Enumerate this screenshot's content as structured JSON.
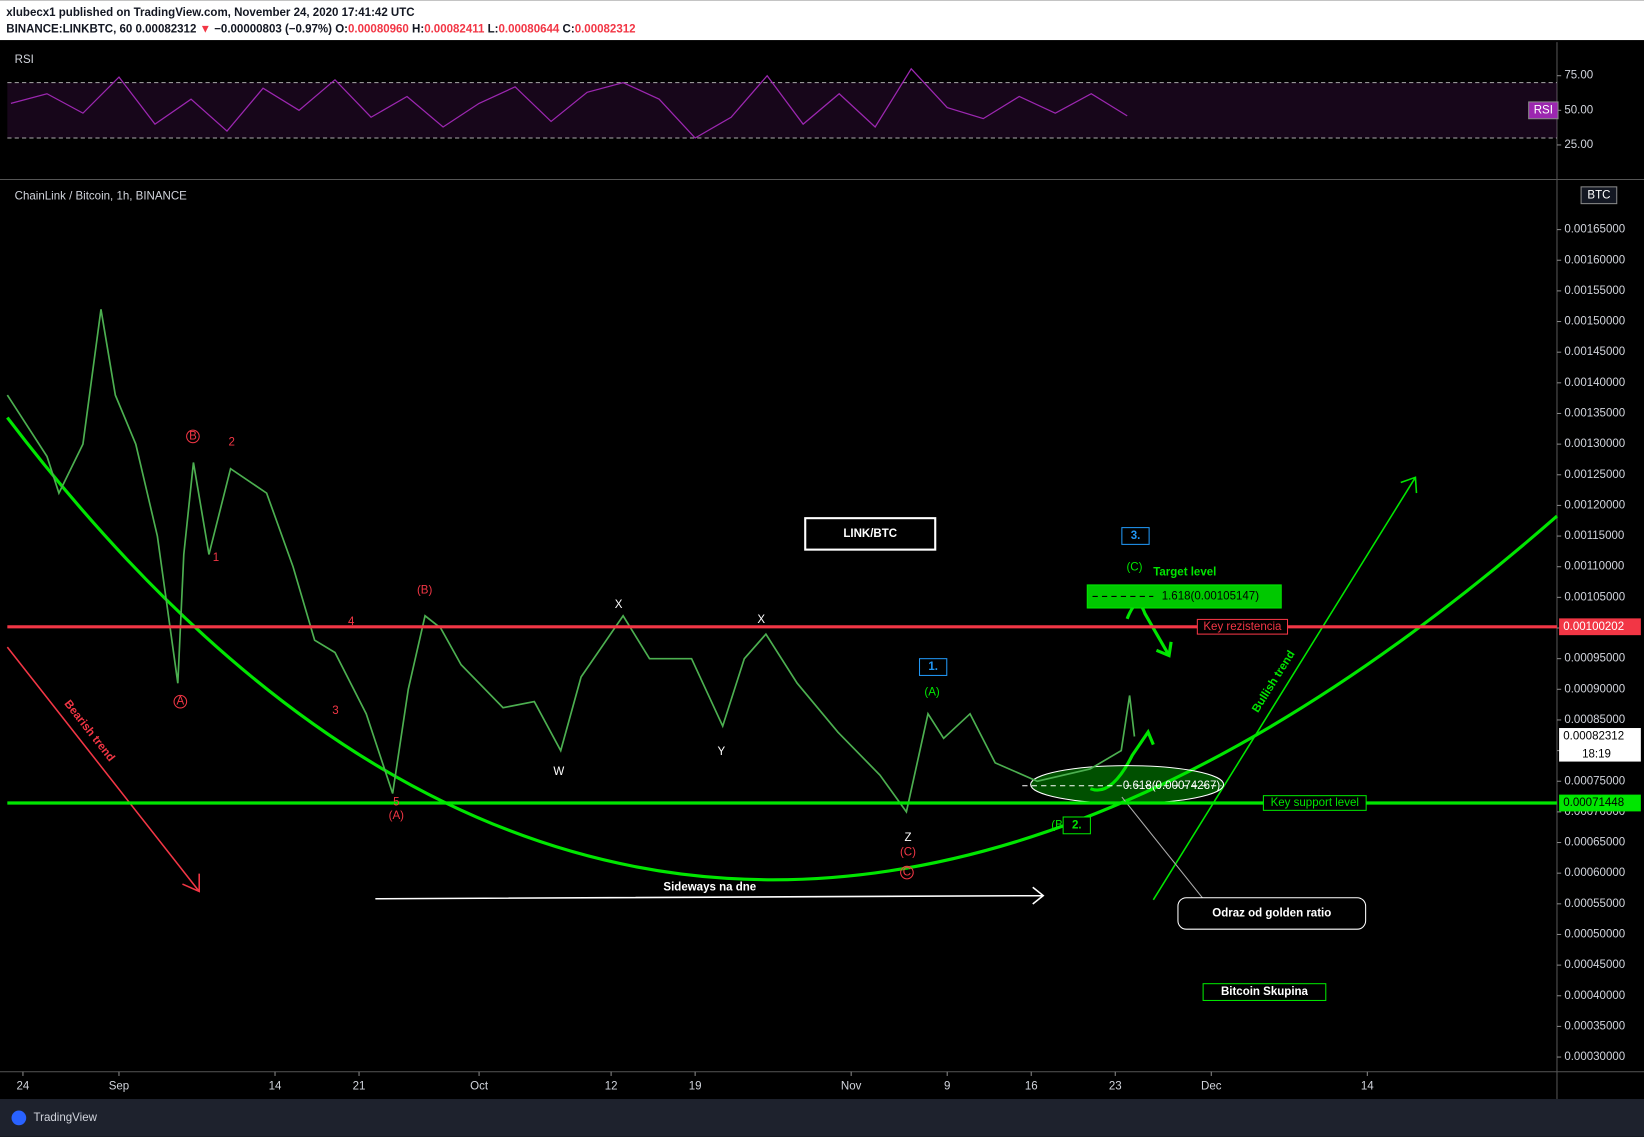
{
  "header": {
    "line1": "xlubecx1 published on TradingView.com, November 24, 2020 17:41:42 UTC",
    "line2": [
      {
        "text": "BINANCE:LINKBTC, 60 ",
        "color": "#131722"
      },
      {
        "text": "0.00082312 ",
        "color": "#131722"
      },
      {
        "text": "▼ ",
        "color": "#f23645"
      },
      {
        "text": "−0.00000803 (−0.97%) ",
        "color": "#131722"
      },
      {
        "text": "O:",
        "color": "#131722"
      },
      {
        "text": "0.00080960 ",
        "color": "#f23645"
      },
      {
        "text": "H:",
        "color": "#131722"
      },
      {
        "text": "0.00082411 ",
        "color": "#f23645"
      },
      {
        "text": "L:",
        "color": "#131722"
      },
      {
        "text": "0.00080644 ",
        "color": "#f23645"
      },
      {
        "text": "C:",
        "color": "#131722"
      },
      {
        "text": "0.00082312",
        "color": "#f23645"
      }
    ]
  },
  "chart_data": [
    {
      "type": "line",
      "title": "RSI",
      "badge": "RSI",
      "color": "#9c27b0",
      "x": [
        -1,
        2,
        5,
        8,
        11,
        14,
        17,
        20,
        23,
        26,
        29,
        32,
        35,
        38,
        41,
        44,
        47,
        50,
        53,
        56,
        59,
        62,
        65,
        68,
        71,
        74,
        77,
        80,
        83,
        86,
        89,
        92
      ],
      "values": [
        55,
        62,
        48,
        74,
        40,
        58,
        35,
        66,
        50,
        72,
        45,
        60,
        38,
        55,
        67,
        42,
        63,
        70,
        58,
        30,
        45,
        75,
        40,
        62,
        38,
        80,
        52,
        44,
        60,
        48,
        62,
        46
      ],
      "bands": [
        30,
        70
      ],
      "xlim": [
        -1.3,
        127.8
      ],
      "ylim": [
        0.8,
        97.7
      ],
      "yticks": [
        {
          "value": 25,
          "label": "25.00"
        },
        {
          "value": 50,
          "label": "50.00"
        },
        {
          "value": 75,
          "label": "75.00"
        }
      ]
    },
    {
      "type": "line",
      "title": "ChainLink / Bitcoin, 1h, BINANCE",
      "badge": "BTC",
      "color": "#4caf50",
      "x": [
        -1.3,
        2,
        3,
        5,
        6.5,
        7.7,
        9.4,
        11.2,
        12.9,
        13.4,
        14.2,
        15.5,
        17.3,
        20.3,
        22.5,
        24.3,
        26,
        28.6,
        30.8,
        32.1,
        33.5,
        34.8,
        36.5,
        40,
        42.6,
        44.8,
        46.5,
        50,
        52.2,
        55.7,
        58.3,
        60.1,
        61.9,
        64.5,
        67.9,
        71.4,
        73.6,
        75.4,
        76.7,
        78.9,
        81,
        84.5,
        88.9,
        91.5,
        92.2,
        92.6
      ],
      "values": [
        0.00138,
        0.00128,
        0.00122,
        0.0013,
        0.00152,
        0.00138,
        0.0013,
        0.00115,
        0.00091,
        0.00112,
        0.00127,
        0.00112,
        0.00126,
        0.00122,
        0.0011,
        0.00098,
        0.00096,
        0.00086,
        0.00073,
        0.0009,
        0.00102,
        0.001,
        0.00094,
        0.00087,
        0.00088,
        0.0008,
        0.00092,
        0.00102,
        0.00095,
        0.00095,
        0.00084,
        0.00095,
        0.00099,
        0.00091,
        0.00083,
        0.00076,
        0.0007,
        0.00086,
        0.00082,
        0.00086,
        0.00078,
        0.00075,
        0.00077,
        0.0008,
        0.00089,
        0.00082312
      ],
      "last": {
        "value": 0.00082312,
        "countdown": "18:19"
      },
      "xlim": [
        -1.3,
        127.8
      ],
      "ylim": [
        0.000276,
        0.00173
      ],
      "xticks": [
        {
          "value": 0,
          "label": "24"
        },
        {
          "value": 8,
          "label": "Sep"
        },
        {
          "value": 21,
          "label": "14"
        },
        {
          "value": 28,
          "label": "21"
        },
        {
          "value": 38,
          "label": "Oct"
        },
        {
          "value": 49,
          "label": "12"
        },
        {
          "value": 56,
          "label": "19"
        },
        {
          "value": 69,
          "label": "Nov"
        },
        {
          "value": 77,
          "label": "9"
        },
        {
          "value": 84,
          "label": "16"
        },
        {
          "value": 91,
          "label": "23"
        },
        {
          "value": 99,
          "label": "Dec"
        },
        {
          "value": 112,
          "label": "14"
        }
      ],
      "yticks": [
        {
          "value": 0.0003,
          "label": "0.00030000"
        },
        {
          "value": 0.00035,
          "label": "0.00035000"
        },
        {
          "value": 0.0004,
          "label": "0.00040000"
        },
        {
          "value": 0.00045,
          "label": "0.00045000"
        },
        {
          "value": 0.0005,
          "label": "0.00050000"
        },
        {
          "value": 0.00055,
          "label": "0.00055000"
        },
        {
          "value": 0.0006,
          "label": "0.00060000"
        },
        {
          "value": 0.00065,
          "label": "0.00065000"
        },
        {
          "value": 0.0007,
          "label": "0.00070000"
        },
        {
          "value": 0.00075,
          "label": "0.00075000"
        },
        {
          "value": 0.0008,
          "label": "0.00080000"
        },
        {
          "value": 0.00085,
          "label": "0.00085000"
        },
        {
          "value": 0.0009,
          "label": "0.00090000"
        },
        {
          "value": 0.00095,
          "label": "0.00095000"
        },
        {
          "value": 0.001,
          "label": "0.00100000"
        },
        {
          "value": 0.00105,
          "label": "0.00105000"
        },
        {
          "value": 0.0011,
          "label": "0.00110000"
        },
        {
          "value": 0.00115,
          "label": "0.00115000"
        },
        {
          "value": 0.0012,
          "label": "0.00120000"
        },
        {
          "value": 0.00125,
          "label": "0.00125000"
        },
        {
          "value": 0.0013,
          "label": "0.00130000"
        },
        {
          "value": 0.00135,
          "label": "0.00135000"
        },
        {
          "value": 0.0014,
          "label": "0.00140000"
        },
        {
          "value": 0.00145,
          "label": "0.00145000"
        },
        {
          "value": 0.0015,
          "label": "0.00150000"
        },
        {
          "value": 0.00155,
          "label": "0.00155000"
        },
        {
          "value": 0.0016,
          "label": "0.00160000"
        },
        {
          "value": 0.00165,
          "label": "0.00165000"
        }
      ],
      "levels": [
        {
          "label": "Key rezistencia",
          "value": 0.00100202,
          "color": "#f23645"
        },
        {
          "label": "Key support level",
          "value": 0.00071448,
          "color": "#00e600"
        }
      ],
      "fibs": [
        {
          "label": "1.618(0.00105147)",
          "value": 0.00105147
        },
        {
          "label": "0.618(0.00074267)",
          "value": 0.00074267
        }
      ],
      "annotations": [
        {
          "text": "LINK/BTC",
          "color": "#ffffff"
        },
        {
          "text": "Sideways na dne",
          "color": "#ffffff"
        },
        {
          "text": "Bearish trend",
          "color": "#f23645"
        },
        {
          "text": "Bullish trend",
          "color": "#00e600"
        },
        {
          "text": "Target level",
          "color": "#00e600"
        },
        {
          "text": "Odraz od golden ratio",
          "color": "#ffffff"
        },
        {
          "text": "Bitcoin Skupina",
          "color": "#ffffff"
        },
        {
          "text": "A",
          "color": "#f23645"
        },
        {
          "text": "B",
          "color": "#f23645"
        },
        {
          "text": "2",
          "color": "#f23645"
        },
        {
          "text": "1",
          "color": "#f23645"
        },
        {
          "text": "3",
          "color": "#f23645"
        },
        {
          "text": "4",
          "color": "#f23645"
        },
        {
          "text": "5",
          "color": "#f23645"
        },
        {
          "text": "(A)",
          "color": "#f23645"
        },
        {
          "text": "(B)",
          "color": "#f23645"
        },
        {
          "text": "X",
          "color": "#ffffff"
        },
        {
          "text": "X",
          "color": "#ffffff"
        },
        {
          "text": "W",
          "color": "#ffffff"
        },
        {
          "text": "Y",
          "color": "#ffffff"
        },
        {
          "text": "Z",
          "color": "#ffffff"
        },
        {
          "text": "(C)",
          "color": "#f23645"
        },
        {
          "text": "C",
          "color": "#f23645"
        },
        {
          "text": "1.",
          "color": "#2196f3"
        },
        {
          "text": "(A)",
          "color": "#00e600"
        },
        {
          "text": "(B)",
          "color": "#00e600"
        },
        {
          "text": "2.",
          "color": "#00e600"
        },
        {
          "text": "3.",
          "color": "#2196f3"
        },
        {
          "text": "(C)",
          "color": "#00e600"
        }
      ]
    }
  ],
  "footer": "TradingView"
}
